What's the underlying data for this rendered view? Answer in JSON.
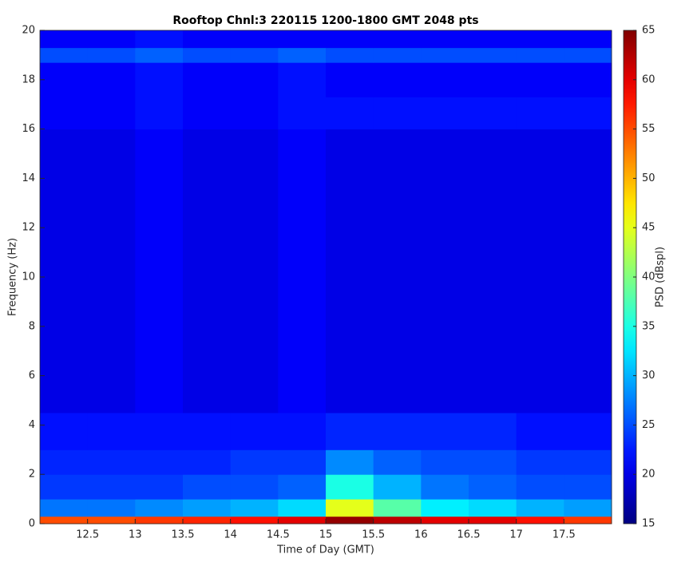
{
  "chart_data": {
    "type": "heatmap",
    "title": "Rooftop Chnl:3 220115 1200-1800 GMT 2048 pts",
    "x_label": "Time of Day (GMT)",
    "y_label": "Frequency (Hz)",
    "colorbar_label": "PSD (dBspl)",
    "xlim": [
      12,
      18
    ],
    "ylim": [
      0,
      20
    ],
    "xticks": [
      12.5,
      13,
      13.5,
      14,
      14.5,
      15,
      15.5,
      16,
      16.5,
      17,
      17.5
    ],
    "yticks": [
      0,
      2,
      4,
      6,
      8,
      10,
      12,
      14,
      16,
      18,
      20
    ],
    "clim": [
      15,
      65
    ],
    "cticks": [
      15,
      20,
      25,
      30,
      35,
      40,
      45,
      50,
      55,
      60,
      65
    ],
    "colormap": "jet",
    "xbins": [
      12,
      12.5,
      13,
      13.5,
      14,
      14.5,
      15,
      15.5,
      16,
      16.5,
      17,
      17.5,
      18
    ],
    "ybins": [
      0,
      0.3,
      1,
      2,
      3,
      4.5,
      8,
      16,
      17.3,
      18.7,
      19.3,
      20
    ],
    "values": [
      [
        55,
        55,
        56,
        57,
        58,
        60,
        64,
        62,
        60,
        60,
        58,
        56
      ],
      [
        27,
        27,
        28,
        29,
        30,
        32,
        45,
        38,
        33,
        32,
        30,
        29
      ],
      [
        24,
        24,
        24,
        25,
        25,
        26,
        35,
        30,
        27,
        26,
        25,
        25
      ],
      [
        23,
        23,
        23,
        23,
        24,
        24,
        28,
        26,
        25,
        25,
        24,
        24
      ],
      [
        22,
        22,
        22,
        22,
        22,
        22,
        23,
        23,
        23,
        23,
        22,
        22
      ],
      [
        20,
        20,
        21,
        20,
        20,
        21,
        20,
        20,
        20,
        20,
        20,
        20
      ],
      [
        20,
        20,
        21,
        20,
        20,
        21,
        20,
        20,
        20,
        20,
        20,
        20
      ],
      [
        21,
        21,
        22,
        21,
        21,
        22,
        22,
        22,
        22,
        22,
        22,
        22
      ],
      [
        21,
        21,
        22,
        21,
        21,
        22,
        21,
        21,
        21,
        21,
        21,
        21
      ],
      [
        25,
        25,
        26,
        25,
        25,
        26,
        25,
        25,
        25,
        25,
        25,
        25
      ],
      [
        21,
        21,
        22,
        21,
        21,
        21,
        21,
        21,
        21,
        21,
        21,
        21
      ]
    ]
  }
}
